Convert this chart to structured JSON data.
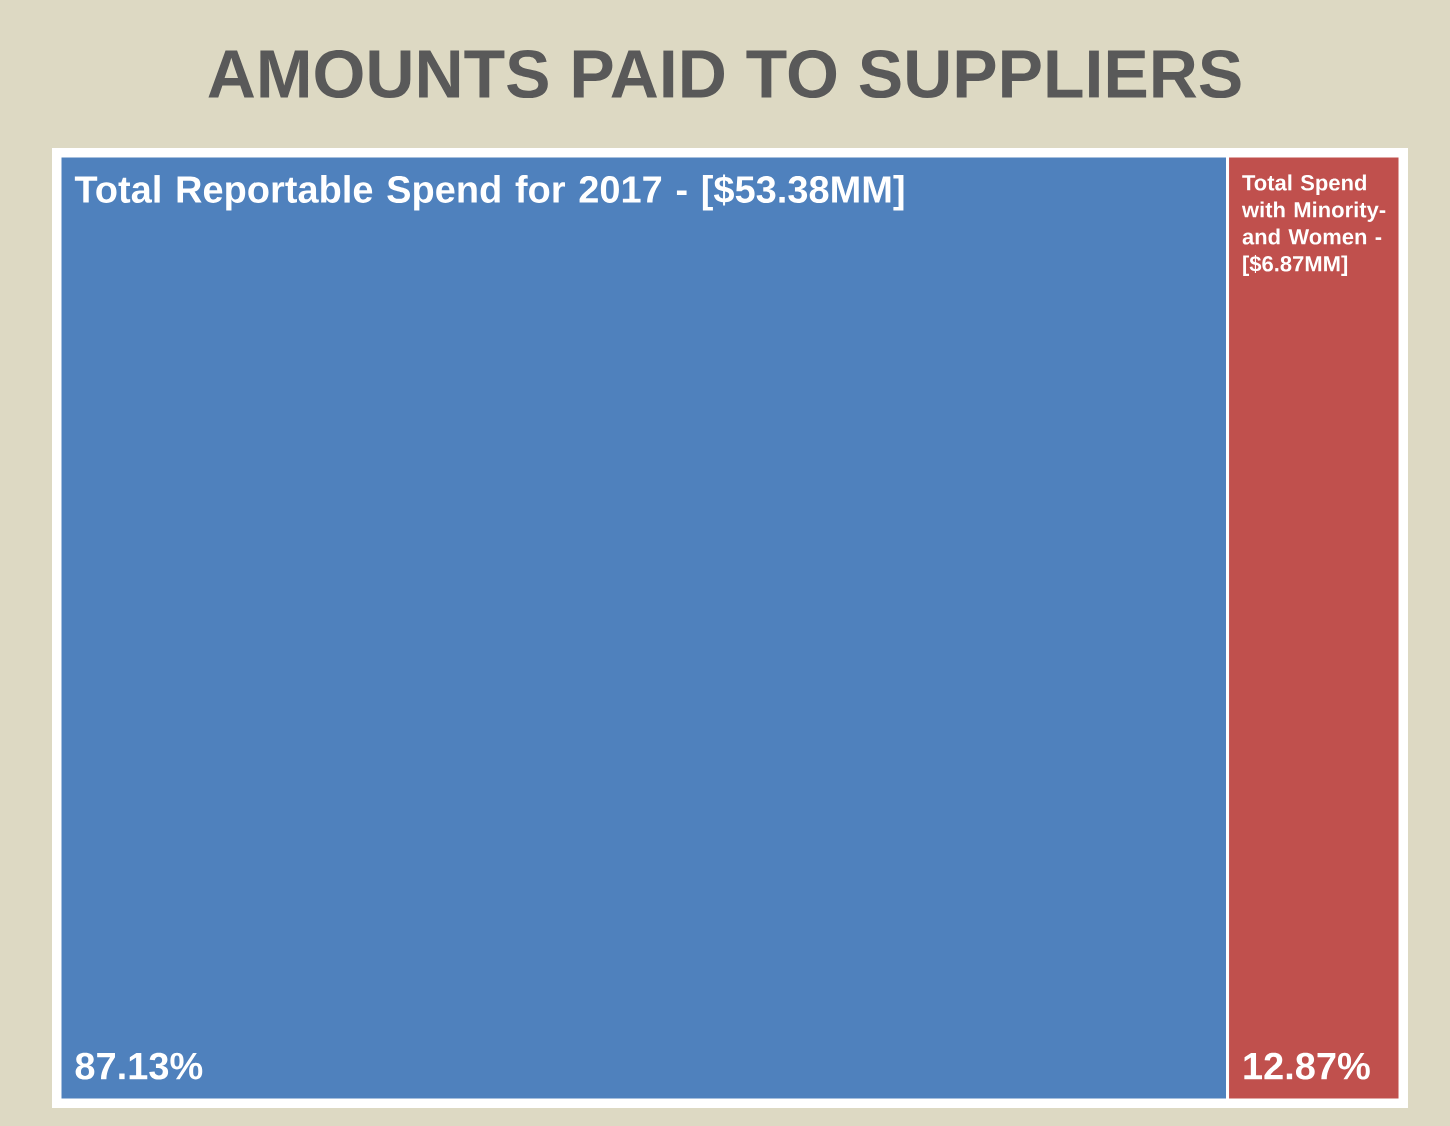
{
  "chart_data": {
    "type": "other",
    "title": "AMOUNTS PAID TO SUPPLIERS",
    "categories": [
      "Total Reportable Spend for 2017 - [$53.38MM]",
      "Total Spend with Minority- and Women - [$6.87MM]"
    ],
    "values": [
      87.13,
      12.87
    ],
    "value_labels": [
      "87.13%",
      "12.87%"
    ],
    "colors": [
      "#4f81bd",
      "#c0504d"
    ]
  }
}
